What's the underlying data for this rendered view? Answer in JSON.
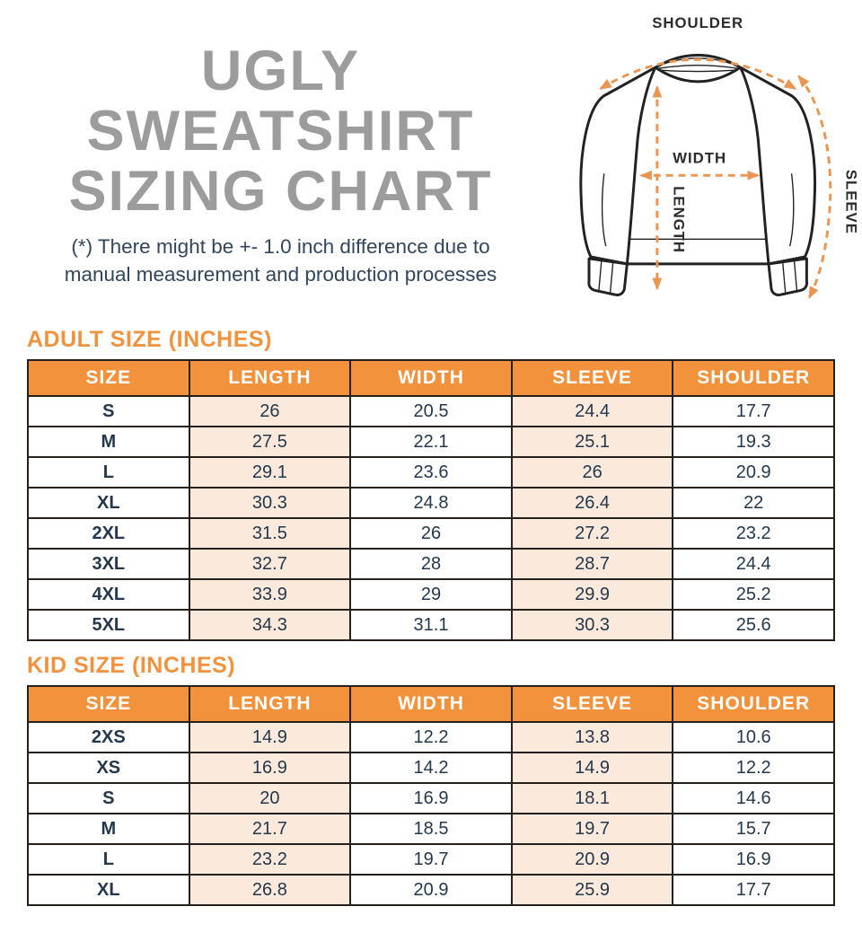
{
  "title": {
    "line1": "UGLY SWEATSHIRT",
    "line2": "SIZING CHART"
  },
  "disclaimer": {
    "line1": "(*) There might be +- 1.0 inch difference due to",
    "line2": "manual measurement and production processes"
  },
  "diagram": {
    "shoulder_label": "SHOULDER",
    "width_label": "WIDTH",
    "length_label": "LENGTH",
    "sleeve_label": "SLEEVE"
  },
  "colors": {
    "header_orange": "#f2923d",
    "heading_orange": "#f0923e",
    "row_tint_cream": "#fbe9dc",
    "title_gray": "#9c9c9c",
    "text_navy": "#24384d",
    "arrow_orange": "#eb9552",
    "border_dark": "#25201c"
  },
  "chart_data": [
    {
      "type": "table",
      "title": "ADULT SIZE (INCHES)",
      "columns": [
        "SIZE",
        "LENGTH",
        "WIDTH",
        "SLEEVE",
        "SHOULDER"
      ],
      "rows": [
        [
          "S",
          "26",
          "20.5",
          "24.4",
          "17.7"
        ],
        [
          "M",
          "27.5",
          "22.1",
          "25.1",
          "19.3"
        ],
        [
          "L",
          "29.1",
          "23.6",
          "26",
          "20.9"
        ],
        [
          "XL",
          "30.3",
          "24.8",
          "26.4",
          "22"
        ],
        [
          "2XL",
          "31.5",
          "26",
          "27.2",
          "23.2"
        ],
        [
          "3XL",
          "32.7",
          "28",
          "28.7",
          "24.4"
        ],
        [
          "4XL",
          "33.9",
          "29",
          "29.9",
          "25.2"
        ],
        [
          "5XL",
          "34.3",
          "31.1",
          "30.3",
          "25.6"
        ]
      ]
    },
    {
      "type": "table",
      "title": "KID SIZE (INCHES)",
      "columns": [
        "SIZE",
        "LENGTH",
        "WIDTH",
        "SLEEVE",
        "SHOULDER"
      ],
      "rows": [
        [
          "2XS",
          "14.9",
          "12.2",
          "13.8",
          "10.6"
        ],
        [
          "XS",
          "16.9",
          "14.2",
          "14.9",
          "12.2"
        ],
        [
          "S",
          "20",
          "16.9",
          "18.1",
          "14.6"
        ],
        [
          "M",
          "21.7",
          "18.5",
          "19.7",
          "15.7"
        ],
        [
          "L",
          "23.2",
          "19.7",
          "20.9",
          "16.9"
        ],
        [
          "XL",
          "26.8",
          "20.9",
          "25.9",
          "17.7"
        ]
      ]
    }
  ]
}
